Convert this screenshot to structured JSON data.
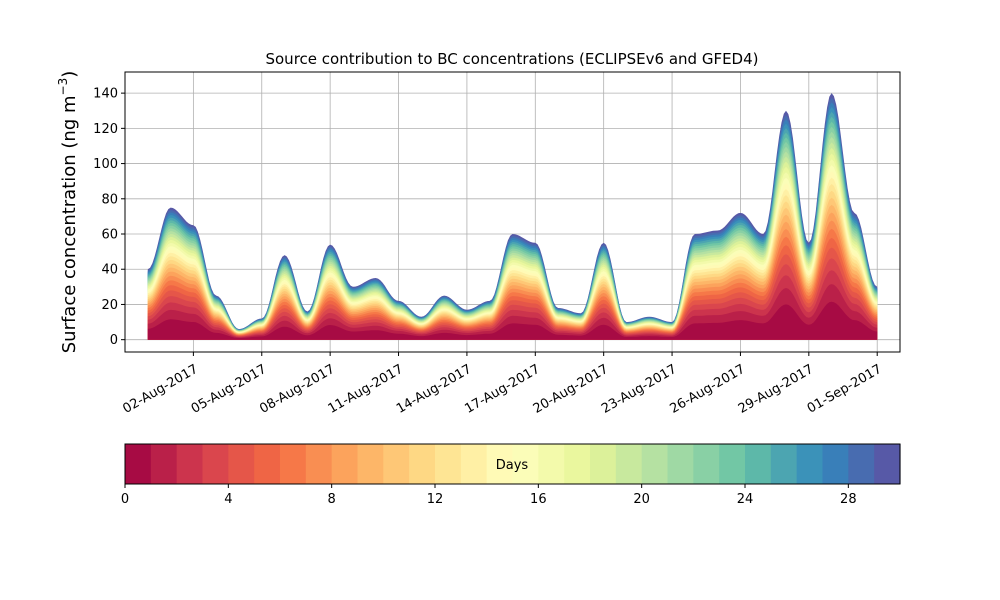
{
  "chart_data": {
    "type": "area",
    "title": "Source contribution to BC concentrations (ECLIPSEv6 and GFED4)",
    "ylabel_main": "Surface concentration (ng m",
    "ylabel_sup": "−3",
    "ylabel_close": ")",
    "x_start": "2017-07-31",
    "x_end": "2017-09-01",
    "xlim": [
      "2017-07-30",
      "2017-09-02"
    ],
    "ylim": [
      -7,
      152
    ],
    "grid": true,
    "x_ticks": [
      {
        "date": "2017-08-02",
        "label": "02-Aug-2017"
      },
      {
        "date": "2017-08-05",
        "label": "05-Aug-2017"
      },
      {
        "date": "2017-08-08",
        "label": "08-Aug-2017"
      },
      {
        "date": "2017-08-11",
        "label": "11-Aug-2017"
      },
      {
        "date": "2017-08-14",
        "label": "14-Aug-2017"
      },
      {
        "date": "2017-08-17",
        "label": "17-Aug-2017"
      },
      {
        "date": "2017-08-20",
        "label": "20-Aug-2017"
      },
      {
        "date": "2017-08-23",
        "label": "23-Aug-2017"
      },
      {
        "date": "2017-08-26",
        "label": "26-Aug-2017"
      },
      {
        "date": "2017-08-29",
        "label": "29-Aug-2017"
      },
      {
        "date": "2017-09-01",
        "label": "01-Sep-2017"
      }
    ],
    "y_ticks": [
      0,
      20,
      40,
      60,
      80,
      100,
      120,
      140
    ],
    "total": {
      "x": [
        "2017-07-31",
        "2017-08-01",
        "2017-08-02",
        "2017-08-03",
        "2017-08-04",
        "2017-08-05",
        "2017-08-06",
        "2017-08-07",
        "2017-08-08",
        "2017-08-09",
        "2017-08-10",
        "2017-08-11",
        "2017-08-12",
        "2017-08-13",
        "2017-08-14",
        "2017-08-15",
        "2017-08-16",
        "2017-08-17",
        "2017-08-18",
        "2017-08-19",
        "2017-08-20",
        "2017-08-21",
        "2017-08-22",
        "2017-08-23",
        "2017-08-24",
        "2017-08-25",
        "2017-08-26",
        "2017-08-27",
        "2017-08-28",
        "2017-08-29",
        "2017-08-30",
        "2017-08-31",
        "2017-09-01"
      ],
      "y": [
        40,
        75,
        65,
        25,
        6,
        12,
        48,
        16,
        54,
        30,
        35,
        22,
        13,
        25,
        17,
        22,
        60,
        55,
        18,
        15,
        55,
        10,
        13,
        10,
        60,
        62,
        72,
        60,
        130,
        55,
        140,
        72,
        30
      ]
    },
    "colorbar": {
      "label": "Days",
      "min": 0,
      "max": 30,
      "ticks": [
        0,
        4,
        8,
        12,
        16,
        20,
        24,
        28
      ],
      "colormap": "Spectral",
      "levels": 30
    }
  }
}
